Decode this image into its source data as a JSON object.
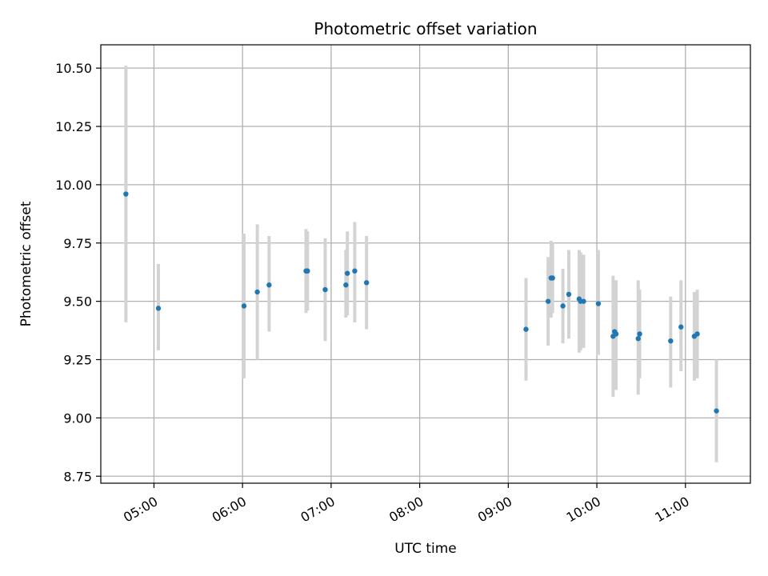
{
  "chart_data": {
    "type": "scatter",
    "title": "Photometric offset variation",
    "xlabel": "UTC time",
    "ylabel": "Photometric offset",
    "x_format": "HH:MM",
    "xlim": [
      "04:24",
      "11:44"
    ],
    "ylim": [
      8.72,
      10.6
    ],
    "x_ticks": [
      "05:00",
      "06:00",
      "07:00",
      "08:00",
      "09:00",
      "10:00",
      "11:00"
    ],
    "y_ticks": [
      "8.75",
      "9.00",
      "9.25",
      "9.50",
      "9.75",
      "10.00",
      "10.25",
      "10.50"
    ],
    "grid": true,
    "marker_color": "#1f77b4",
    "errorbar_color": "#d3d3d3",
    "points": [
      {
        "t": "04:41",
        "y": 9.96,
        "lo": 9.41,
        "hi": 10.51
      },
      {
        "t": "05:03",
        "y": 9.47,
        "lo": 9.29,
        "hi": 9.66
      },
      {
        "t": "06:01",
        "y": 9.48,
        "lo": 9.17,
        "hi": 9.79
      },
      {
        "t": "06:10",
        "y": 9.54,
        "lo": 9.25,
        "hi": 9.83
      },
      {
        "t": "06:18",
        "y": 9.57,
        "lo": 9.37,
        "hi": 9.78
      },
      {
        "t": "06:43",
        "y": 9.63,
        "lo": 9.45,
        "hi": 9.81
      },
      {
        "t": "06:44",
        "y": 9.63,
        "lo": 9.46,
        "hi": 9.8
      },
      {
        "t": "06:56",
        "y": 9.55,
        "lo": 9.33,
        "hi": 9.77
      },
      {
        "t": "07:10",
        "y": 9.57,
        "lo": 9.43,
        "hi": 9.72
      },
      {
        "t": "07:11",
        "y": 9.62,
        "lo": 9.44,
        "hi": 9.8
      },
      {
        "t": "07:16",
        "y": 9.63,
        "lo": 9.41,
        "hi": 9.84
      },
      {
        "t": "07:24",
        "y": 9.58,
        "lo": 9.38,
        "hi": 9.78
      },
      {
        "t": "09:12",
        "y": 9.38,
        "lo": 9.16,
        "hi": 9.6
      },
      {
        "t": "09:27",
        "y": 9.5,
        "lo": 9.31,
        "hi": 9.69
      },
      {
        "t": "09:29",
        "y": 9.6,
        "lo": 9.43,
        "hi": 9.76
      },
      {
        "t": "09:30",
        "y": 9.6,
        "lo": 9.45,
        "hi": 9.75
      },
      {
        "t": "09:37",
        "y": 9.48,
        "lo": 9.32,
        "hi": 9.64
      },
      {
        "t": "09:41",
        "y": 9.53,
        "lo": 9.34,
        "hi": 9.72
      },
      {
        "t": "09:48",
        "y": 9.51,
        "lo": 9.28,
        "hi": 9.72
      },
      {
        "t": "09:49",
        "y": 9.5,
        "lo": 9.29,
        "hi": 9.71
      },
      {
        "t": "09:51",
        "y": 9.5,
        "lo": 9.3,
        "hi": 9.7
      },
      {
        "t": "10:01",
        "y": 9.49,
        "lo": 9.27,
        "hi": 9.72
      },
      {
        "t": "10:11",
        "y": 9.35,
        "lo": 9.09,
        "hi": 9.61
      },
      {
        "t": "10:12",
        "y": 9.37,
        "lo": 9.14,
        "hi": 9.59
      },
      {
        "t": "10:13",
        "y": 9.36,
        "lo": 9.12,
        "hi": 9.59
      },
      {
        "t": "10:28",
        "y": 9.34,
        "lo": 9.1,
        "hi": 9.59
      },
      {
        "t": "10:29",
        "y": 9.36,
        "lo": 9.17,
        "hi": 9.55
      },
      {
        "t": "10:50",
        "y": 9.33,
        "lo": 9.13,
        "hi": 9.52
      },
      {
        "t": "10:57",
        "y": 9.39,
        "lo": 9.2,
        "hi": 9.59
      },
      {
        "t": "11:06",
        "y": 9.35,
        "lo": 9.16,
        "hi": 9.54
      },
      {
        "t": "11:08",
        "y": 9.36,
        "lo": 9.17,
        "hi": 9.55
      },
      {
        "t": "11:21",
        "y": 9.03,
        "lo": 8.81,
        "hi": 9.25
      }
    ]
  }
}
